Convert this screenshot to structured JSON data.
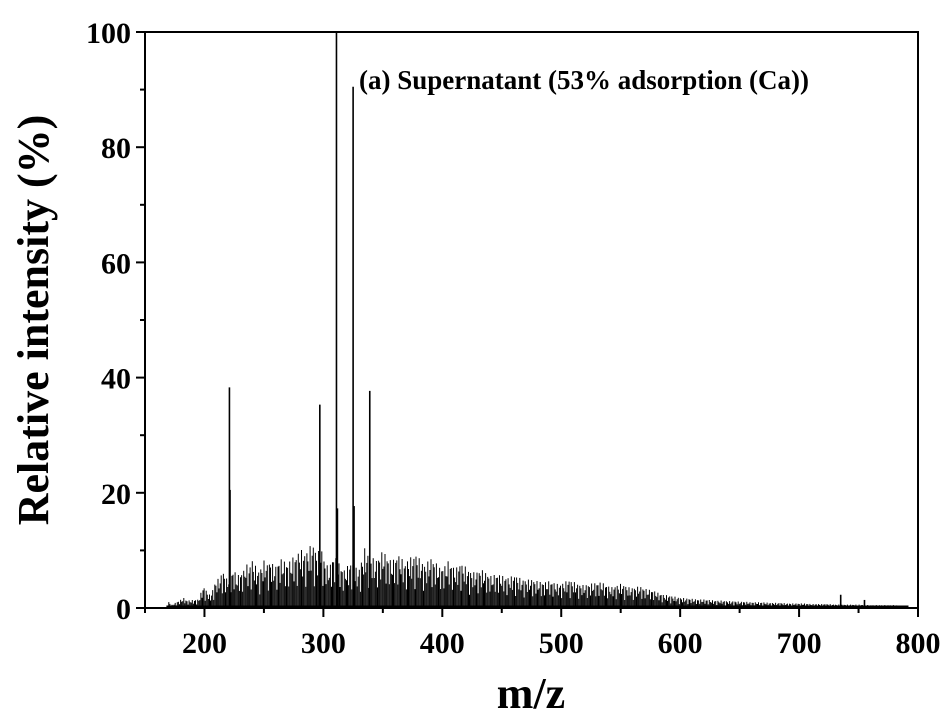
{
  "chart_data": {
    "type": "line",
    "title": "",
    "annotation": "(a) Supernatant (53% adsorption (Ca))",
    "xlabel": "m/z",
    "ylabel": "Relative intensity (%)",
    "xlim": [
      150,
      800
    ],
    "ylim": [
      0,
      100
    ],
    "xticks": [
      200,
      300,
      400,
      500,
      600,
      700,
      800
    ],
    "yticks": [
      0,
      20,
      40,
      60,
      80,
      100
    ],
    "grid": false,
    "line_color": "#000000",
    "major_peaks": [
      {
        "x": 221,
        "y": 38.3
      },
      {
        "x": 221.5,
        "y": 20.5
      },
      {
        "x": 297,
        "y": 35.3
      },
      {
        "x": 311,
        "y": 100
      },
      {
        "x": 311.8,
        "y": 17.3
      },
      {
        "x": 325,
        "y": 90.5
      },
      {
        "x": 325.8,
        "y": 17.7
      },
      {
        "x": 339,
        "y": 37.7
      },
      {
        "x": 735,
        "y": 2.3
      },
      {
        "x": 755,
        "y": 1.4
      }
    ],
    "series": [
      {
        "values": [
          [
            170,
            1.1
          ],
          [
            172,
            0.5
          ],
          [
            183,
            1.8
          ],
          [
            185,
            1.3
          ],
          [
            195,
            1.5
          ],
          [
            199,
            3.8
          ],
          [
            201,
            3.3
          ],
          [
            205,
            2.1
          ],
          [
            209,
            4.5
          ],
          [
            212,
            5.2
          ],
          [
            214,
            5.8
          ],
          [
            216,
            6.5
          ],
          [
            218,
            5.0
          ],
          [
            223,
            6.2
          ],
          [
            225,
            6.8
          ],
          [
            227,
            5.5
          ],
          [
            233,
            6.6
          ],
          [
            235,
            8.0
          ],
          [
            237,
            6.8
          ],
          [
            240,
            8.5
          ],
          [
            242,
            7.6
          ],
          [
            246,
            6.4
          ],
          [
            249,
            7.8
          ],
          [
            251,
            8.6
          ],
          [
            253,
            7.6
          ],
          [
            256,
            8.5
          ],
          [
            258,
            7.2
          ],
          [
            261,
            7.4
          ],
          [
            263,
            8.6
          ],
          [
            265,
            8.5
          ],
          [
            267,
            8.2
          ],
          [
            270,
            7.8
          ],
          [
            273,
            8.5
          ],
          [
            276,
            9.2
          ],
          [
            278,
            9.0
          ],
          [
            280,
            10.5
          ],
          [
            282,
            10.0
          ],
          [
            285,
            9.5
          ],
          [
            287,
            10.2
          ],
          [
            289,
            10.8
          ],
          [
            291,
            11.3
          ],
          [
            293,
            10.2
          ],
          [
            295,
            9.8
          ],
          [
            299,
            10.2
          ],
          [
            301,
            8.2
          ],
          [
            303,
            7.5
          ],
          [
            305,
            7.0
          ],
          [
            307,
            8.5
          ],
          [
            309,
            9.2
          ],
          [
            315,
            7.2
          ],
          [
            317,
            6.5
          ],
          [
            319,
            7.0
          ],
          [
            321,
            7.5
          ],
          [
            323,
            8.0
          ],
          [
            327,
            7.2
          ],
          [
            329,
            6.4
          ],
          [
            331,
            7.5
          ],
          [
            333,
            9.0
          ],
          [
            335,
            10.6
          ],
          [
            337,
            9.5
          ],
          [
            341,
            9.2
          ],
          [
            343,
            8.0
          ],
          [
            345,
            8.5
          ],
          [
            348,
            9.4
          ],
          [
            350,
            10.0
          ],
          [
            352,
            9.5
          ],
          [
            355,
            8.6
          ],
          [
            358,
            8.2
          ],
          [
            361,
            9.0
          ],
          [
            363,
            9.3
          ],
          [
            366,
            8.6
          ],
          [
            369,
            7.8
          ],
          [
            372,
            8.8
          ],
          [
            375,
            8.8
          ],
          [
            378,
            9.4
          ],
          [
            380,
            8.8
          ],
          [
            383,
            8.0
          ],
          [
            386,
            7.5
          ],
          [
            390,
            8.8
          ],
          [
            392,
            8.4
          ],
          [
            395,
            7.8
          ],
          [
            398,
            7.0
          ],
          [
            402,
            7.3
          ],
          [
            405,
            8.2
          ],
          [
            408,
            7.5
          ],
          [
            411,
            6.8
          ],
          [
            415,
            7.8
          ],
          [
            418,
            7.5
          ],
          [
            422,
            6.6
          ],
          [
            426,
            6.2
          ],
          [
            430,
            6.4
          ],
          [
            433,
            6.7
          ],
          [
            437,
            6.1
          ],
          [
            441,
            5.6
          ],
          [
            445,
            5.9
          ],
          [
            448,
            5.8
          ],
          [
            452,
            5.5
          ],
          [
            456,
            5.3
          ],
          [
            460,
            5.7
          ],
          [
            463,
            5.5
          ],
          [
            467,
            5.0
          ],
          [
            471,
            4.9
          ],
          [
            475,
            5.0
          ],
          [
            478,
            4.8
          ],
          [
            482,
            4.6
          ],
          [
            486,
            4.5
          ],
          [
            490,
            4.7
          ],
          [
            494,
            4.4
          ],
          [
            498,
            4.1
          ],
          [
            502,
            4.4
          ],
          [
            506,
            4.9
          ],
          [
            510,
            4.6
          ],
          [
            514,
            4.2
          ],
          [
            518,
            4.0
          ],
          [
            522,
            4.1
          ],
          [
            526,
            4.3
          ],
          [
            530,
            4.4
          ],
          [
            534,
            4.5
          ],
          [
            538,
            4.0
          ],
          [
            542,
            3.6
          ],
          [
            546,
            3.9
          ],
          [
            550,
            4.2
          ],
          [
            554,
            3.9
          ],
          [
            558,
            3.5
          ],
          [
            562,
            3.6
          ],
          [
            566,
            3.8
          ],
          [
            570,
            3.4
          ],
          [
            574,
            3.2
          ],
          [
            578,
            3.0
          ],
          [
            582,
            2.6
          ],
          [
            586,
            2.3
          ],
          [
            590,
            2.2
          ],
          [
            595,
            2.0
          ],
          [
            600,
            1.8
          ],
          [
            605,
            1.7
          ],
          [
            610,
            1.6
          ],
          [
            615,
            1.5
          ],
          [
            620,
            1.5
          ],
          [
            625,
            1.4
          ],
          [
            630,
            1.3
          ],
          [
            635,
            1.3
          ],
          [
            640,
            1.2
          ],
          [
            645,
            1.2
          ],
          [
            650,
            1.1
          ],
          [
            655,
            1.1
          ],
          [
            660,
            1.0
          ],
          [
            665,
            1.0
          ],
          [
            670,
            1.0
          ],
          [
            675,
            0.9
          ],
          [
            680,
            0.9
          ],
          [
            685,
            0.9
          ],
          [
            690,
            0.8
          ],
          [
            695,
            0.8
          ],
          [
            700,
            0.8
          ],
          [
            705,
            0.8
          ],
          [
            710,
            0.7
          ],
          [
            715,
            0.7
          ],
          [
            720,
            0.7
          ],
          [
            725,
            0.7
          ],
          [
            730,
            0.6
          ],
          [
            740,
            0.6
          ],
          [
            745,
            0.6
          ],
          [
            750,
            0.6
          ],
          [
            760,
            0.5
          ],
          [
            765,
            0.5
          ],
          [
            770,
            0.5
          ],
          [
            775,
            0.5
          ],
          [
            780,
            0.5
          ],
          [
            785,
            0.4
          ],
          [
            790,
            0.4
          ]
        ]
      }
    ]
  }
}
